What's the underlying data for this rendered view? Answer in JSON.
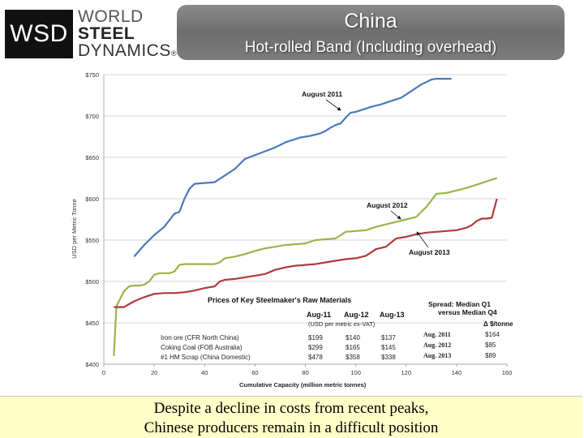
{
  "logo": {
    "abbr": "WSD",
    "line1": "WORLD",
    "line2": "STEEL",
    "line3": "DYNAMICS",
    "mark": "®"
  },
  "header": {
    "title": "China",
    "subtitle": "Hot-rolled Band (Including overhead)"
  },
  "chart_data": {
    "type": "line",
    "ylabel": "USD per Metric Tonne",
    "xlabel": "Cumulative Capacity (million metric tonnes)",
    "xlim": [
      0,
      160
    ],
    "ylim": [
      400,
      750
    ],
    "xticks": [
      0,
      20,
      40,
      60,
      80,
      100,
      120,
      140,
      160
    ],
    "yticks": [
      {
        "value": 400,
        "label": "$400"
      },
      {
        "value": 450,
        "label": "$450"
      },
      {
        "value": 500,
        "label": "$500"
      },
      {
        "value": 550,
        "label": "$550"
      },
      {
        "value": 600,
        "label": "$600"
      },
      {
        "value": 650,
        "label": "$650"
      },
      {
        "value": 700,
        "label": "$700"
      },
      {
        "value": 750,
        "label": "$750"
      }
    ],
    "grid": true,
    "series": [
      {
        "name": "August 2011",
        "color": "#4a7ab8",
        "x": [
          12,
          16,
          20,
          24,
          26,
          28,
          30,
          32,
          34,
          36,
          40,
          44,
          46,
          48,
          52,
          56,
          62,
          68,
          72,
          78,
          82,
          86,
          88,
          90,
          92,
          94,
          96,
          98,
          100,
          102,
          106,
          110,
          114,
          118,
          122,
          126,
          130,
          132,
          134,
          136,
          138
        ],
        "y": [
          530,
          544,
          556,
          566,
          574,
          582,
          584,
          600,
          612,
          618,
          619,
          620,
          624,
          628,
          636,
          648,
          655,
          662,
          668,
          674,
          676,
          679,
          682,
          686,
          689,
          691,
          698,
          704,
          705,
          707,
          711,
          714,
          718,
          722,
          730,
          738,
          744,
          745,
          745,
          745,
          745
        ]
      },
      {
        "name": "August 2012",
        "color": "#9ab549",
        "x": [
          4,
          5,
          6,
          8,
          10,
          12,
          14,
          16,
          18,
          20,
          22,
          24,
          26,
          28,
          30,
          32,
          34,
          36,
          38,
          40,
          42,
          44,
          46,
          48,
          52,
          56,
          60,
          64,
          68,
          72,
          76,
          80,
          84,
          88,
          92,
          96,
          100,
          104,
          108,
          112,
          116,
          120,
          124,
          128,
          132,
          136,
          140,
          144,
          148,
          152,
          156
        ],
        "y": [
          410,
          470,
          476,
          488,
          494,
          495,
          495,
          496,
          500,
          508,
          510,
          510,
          510,
          512,
          520,
          521,
          521,
          521,
          521,
          521,
          521,
          521,
          523,
          528,
          530,
          533,
          537,
          540,
          542,
          544,
          545,
          546,
          550,
          551,
          552,
          560,
          561,
          562,
          566,
          569,
          572,
          575,
          578,
          590,
          606,
          607,
          610,
          613,
          617,
          621,
          625
        ]
      },
      {
        "name": "August 2013",
        "color": "#b03a3a",
        "x": [
          4,
          8,
          12,
          16,
          20,
          24,
          28,
          32,
          36,
          40,
          44,
          46,
          48,
          52,
          56,
          60,
          64,
          68,
          72,
          76,
          80,
          84,
          88,
          92,
          96,
          100,
          104,
          108,
          112,
          116,
          120,
          124,
          128,
          132,
          136,
          140,
          144,
          146,
          148,
          150,
          152,
          154,
          156
        ],
        "y": [
          469,
          469,
          476,
          481,
          485,
          486,
          486,
          487,
          489,
          492,
          494,
          500,
          502,
          503,
          505,
          507,
          509,
          514,
          517,
          519,
          520,
          521,
          523,
          525,
          527,
          528,
          531,
          539,
          542,
          552,
          554,
          557,
          559,
          560,
          561,
          562,
          565,
          568,
          573,
          576,
          576,
          577,
          600
        ]
      }
    ],
    "annotations": [
      {
        "text": "August 2011",
        "series": "August 2011"
      },
      {
        "text": "August 2012",
        "series": "August 2012"
      },
      {
        "text": "August 2013",
        "series": "August 2013"
      }
    ],
    "inset_table": {
      "title": "Prices of Key Steelmaker's Raw Materials",
      "columns": [
        "Aug-11",
        "Aug-12",
        "Aug-13"
      ],
      "unit": "(USD per metric ex-VAT)",
      "rows": [
        {
          "label": "Iron ore (CFR North China)",
          "values": [
            "$199",
            "$140",
            "$137"
          ]
        },
        {
          "label": "Coking Coal (FOB Australia)",
          "values": [
            "$299",
            "$165",
            "$145"
          ]
        },
        {
          "label": "#1 HM Scrap (China Domestic)",
          "values": [
            "$478",
            "$358",
            "$338"
          ]
        }
      ]
    },
    "spread_table": {
      "title_line1": "Spread: Median Q1",
      "title_line2": "versus Median Q4",
      "unit": "Δ $/tonne",
      "rows": [
        {
          "label": "Aug. 2011",
          "value": "$164"
        },
        {
          "label": "Aug. 2012",
          "value": "$85"
        },
        {
          "label": "Aug. 2013",
          "value": "$89"
        }
      ]
    }
  },
  "caption": {
    "line1": "Despite a decline in costs from recent peaks,",
    "line2": "Chinese producers remain in a difficult position"
  }
}
